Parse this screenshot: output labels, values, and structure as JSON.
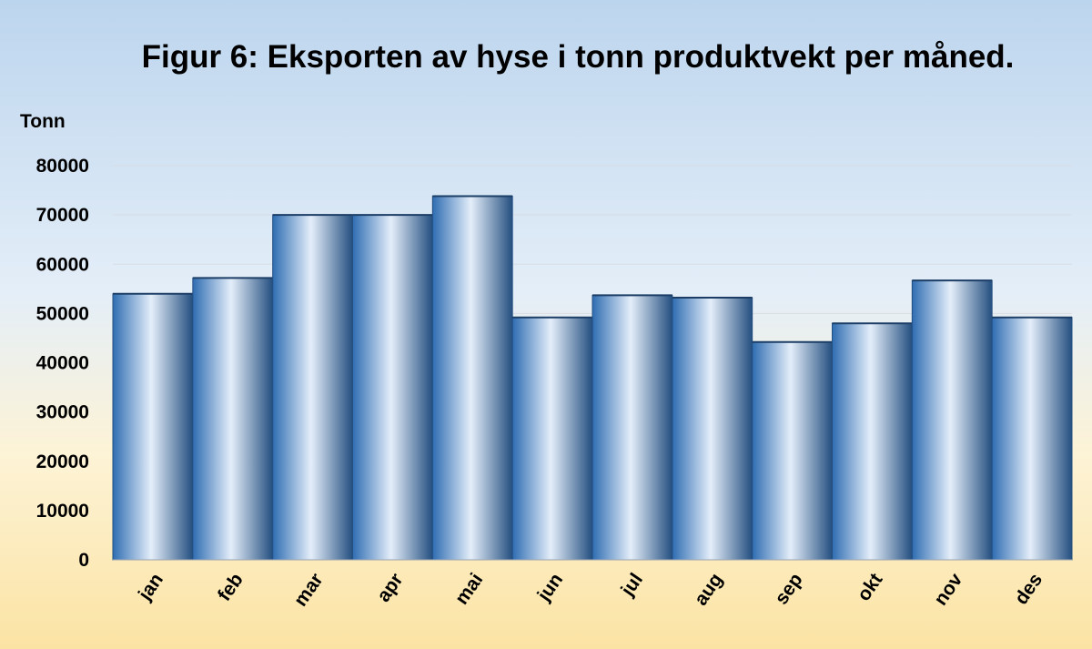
{
  "chart_data": {
    "type": "bar",
    "title": "Figur 6: Eksporten av hyse i tonn produktvekt per måned.",
    "ylabel": "Tonn",
    "categories": [
      "jan",
      "feb",
      "mar",
      "apr",
      "mai",
      "jun",
      "jul",
      "aug",
      "sep",
      "okt",
      "nov",
      "des"
    ],
    "values": [
      54000,
      57200,
      70000,
      70000,
      73800,
      49200,
      53700,
      53200,
      44200,
      48000,
      56700,
      49200
    ],
    "ylim": [
      0,
      80000
    ],
    "yticks": [
      "0",
      "10000",
      "20000",
      "30000",
      "40000",
      "50000",
      "60000",
      "70000",
      "80000"
    ],
    "grid": true,
    "legend": "none",
    "colors": {
      "bar_dark": "#2f6db2",
      "bar_light": "#e4eefa",
      "bar_edge": "#244f80"
    }
  }
}
